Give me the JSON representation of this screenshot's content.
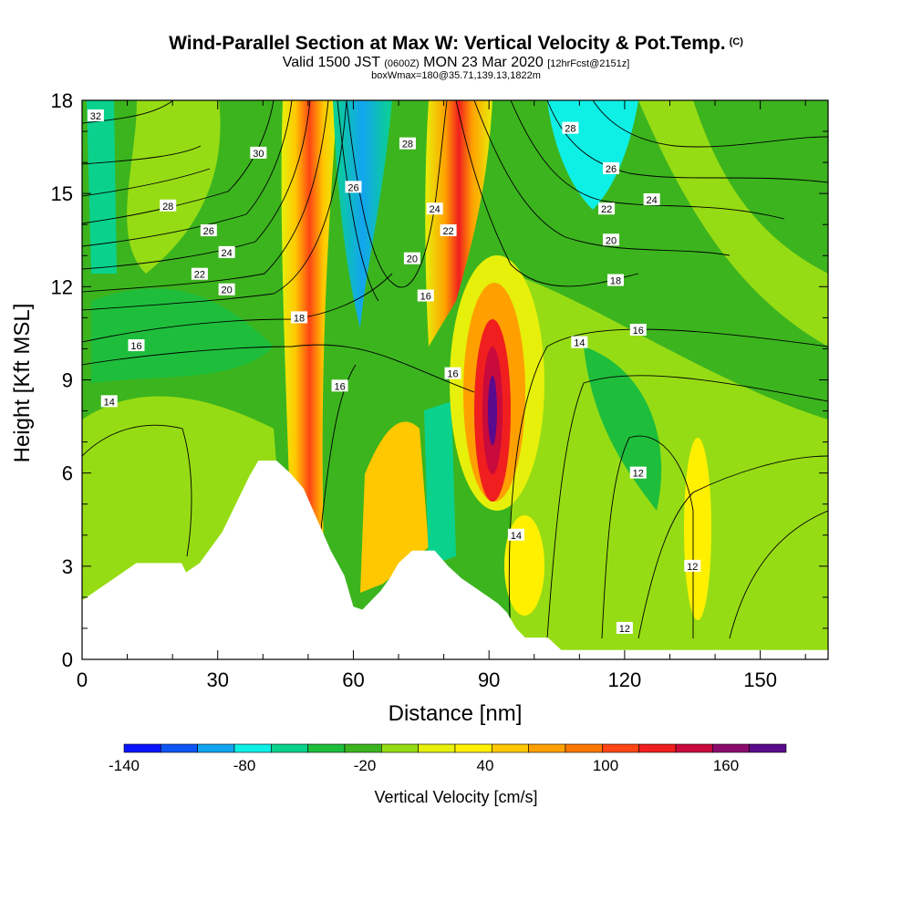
{
  "header": {
    "title": "Wind-Parallel Section at Max W: Vertical Velocity & Pot.Temp.",
    "copyright": "(C)",
    "valid_prefix": "Valid 1500 JST",
    "valid_utc": "(0600Z)",
    "valid_date": "MON 23 Mar 2020",
    "forecast": "[12hrFcst@2151z]",
    "boxinfo": "boxWmax=180@35.71,139.13,1822m"
  },
  "chart_data": {
    "type": "heatmap",
    "title": "Wind-Parallel Section at Max W: Vertical Velocity & Pot.Temp.",
    "xlabel": "Distance [nm]",
    "ylabel": "Height [Kft MSL]",
    "xlim": [
      0,
      165
    ],
    "ylim": [
      0,
      18
    ],
    "x_ticks": [
      0,
      30,
      60,
      90,
      120,
      150
    ],
    "y_ticks": [
      0,
      3,
      6,
      9,
      12,
      15,
      18
    ],
    "grid": false,
    "colorbar": {
      "label": "Vertical Velocity [cm/s]",
      "tick_labels": [
        "-140",
        "-80",
        "-20",
        "40",
        "100",
        "160"
      ],
      "tick_values": [
        -140,
        -80,
        -20,
        40,
        100,
        160
      ],
      "range": [
        -140,
        190
      ],
      "colors": [
        "#0a14ff",
        "#0f55f5",
        "#12a5ef",
        "#0ef0e6",
        "#0ad28c",
        "#1ebe3c",
        "#3cb41e",
        "#96dc14",
        "#e6f00a",
        "#fff000",
        "#ffc800",
        "#ffa000",
        "#ff7800",
        "#ff4614",
        "#f01e1e",
        "#c80a3c",
        "#8c0a6e",
        "#5a0a8c"
      ]
    },
    "terrain": [
      [
        0,
        1.9
      ],
      [
        3,
        2.2
      ],
      [
        6,
        2.5
      ],
      [
        9,
        2.8
      ],
      [
        12,
        3.1
      ],
      [
        18,
        3.1
      ],
      [
        22,
        3.1
      ],
      [
        23,
        2.8
      ],
      [
        26,
        3.1
      ],
      [
        28,
        3.5
      ],
      [
        31,
        4.1
      ],
      [
        33,
        4.7
      ],
      [
        35,
        5.3
      ],
      [
        37,
        5.9
      ],
      [
        39,
        6.4
      ],
      [
        43,
        6.4
      ],
      [
        46,
        6.0
      ],
      [
        49,
        5.5
      ],
      [
        52,
        4.5
      ],
      [
        55,
        3.5
      ],
      [
        58,
        2.7
      ],
      [
        60,
        1.7
      ],
      [
        62,
        1.6
      ],
      [
        64,
        1.9
      ],
      [
        66,
        2.2
      ],
      [
        68,
        2.6
      ],
      [
        70,
        3.1
      ],
      [
        73,
        3.5
      ],
      [
        78,
        3.5
      ],
      [
        81,
        3.0
      ],
      [
        84,
        2.6
      ],
      [
        87,
        2.3
      ],
      [
        90,
        2.0
      ],
      [
        92,
        1.8
      ],
      [
        94,
        1.5
      ],
      [
        96,
        1.0
      ],
      [
        98,
        0.7
      ],
      [
        103,
        0.7
      ],
      [
        106,
        0.3
      ],
      [
        165,
        0.3
      ]
    ],
    "theta_contour_labels": [
      {
        "x": 3,
        "y": 17.5,
        "v": "32"
      },
      {
        "x": 39,
        "y": 16.3,
        "v": "30"
      },
      {
        "x": 19,
        "y": 14.6,
        "v": "28"
      },
      {
        "x": 28,
        "y": 13.8,
        "v": "26"
      },
      {
        "x": 32,
        "y": 13.1,
        "v": "24"
      },
      {
        "x": 26,
        "y": 12.4,
        "v": "22"
      },
      {
        "x": 32,
        "y": 11.9,
        "v": "20"
      },
      {
        "x": 48,
        "y": 11.0,
        "v": "18"
      },
      {
        "x": 12,
        "y": 10.1,
        "v": "16"
      },
      {
        "x": 6,
        "y": 8.3,
        "v": "14"
      },
      {
        "x": 60,
        "y": 15.2,
        "v": "26"
      },
      {
        "x": 72,
        "y": 16.6,
        "v": "28"
      },
      {
        "x": 78,
        "y": 14.5,
        "v": "24"
      },
      {
        "x": 81,
        "y": 13.8,
        "v": "22"
      },
      {
        "x": 73,
        "y": 12.9,
        "v": "20"
      },
      {
        "x": 76,
        "y": 11.7,
        "v": "16"
      },
      {
        "x": 82,
        "y": 9.2,
        "v": "16"
      },
      {
        "x": 57,
        "y": 8.8,
        "v": "16"
      },
      {
        "x": 96,
        "y": 4.0,
        "v": "14"
      },
      {
        "x": 108,
        "y": 17.1,
        "v": "28"
      },
      {
        "x": 117,
        "y": 15.8,
        "v": "26"
      },
      {
        "x": 116,
        "y": 14.5,
        "v": "22"
      },
      {
        "x": 126,
        "y": 14.8,
        "v": "24"
      },
      {
        "x": 117,
        "y": 13.5,
        "v": "20"
      },
      {
        "x": 118,
        "y": 12.2,
        "v": "18"
      },
      {
        "x": 110,
        "y": 10.2,
        "v": "14"
      },
      {
        "x": 123,
        "y": 10.6,
        "v": "16"
      },
      {
        "x": 123,
        "y": 6.0,
        "v": "12"
      },
      {
        "x": 135,
        "y": 3.0,
        "v": "12"
      },
      {
        "x": 120,
        "y": 1.0,
        "v": "12"
      }
    ]
  }
}
